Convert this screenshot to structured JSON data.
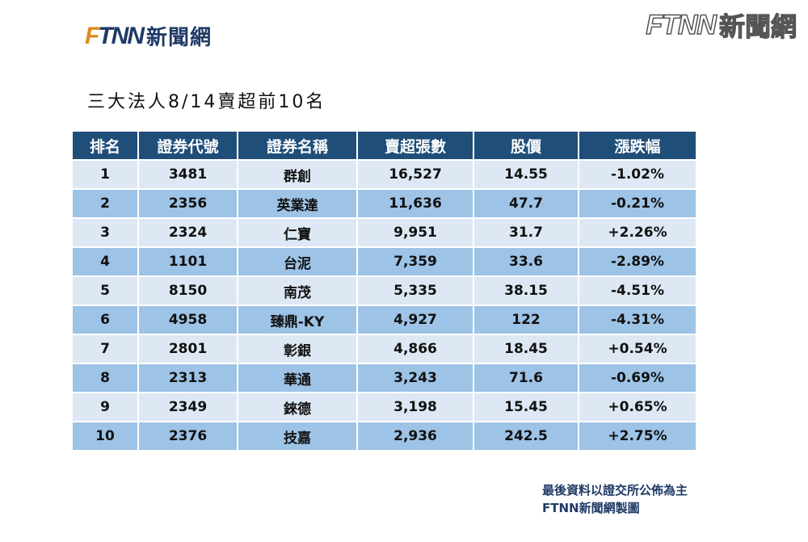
{
  "logo": {
    "letters": "FTNN",
    "text": "新聞網"
  },
  "watermark": {
    "letters": "FTNN",
    "text": "新聞網"
  },
  "title": "三大法人8/14賣超前10名",
  "table": {
    "headers": [
      "排名",
      "證券代號",
      "證券名稱",
      "賣超張數",
      "股價",
      "漲跌幅"
    ],
    "rows": [
      [
        "1",
        "3481",
        "群創",
        "16,527",
        "14.55",
        "-1.02%"
      ],
      [
        "2",
        "2356",
        "英業達",
        "11,636",
        "47.7",
        "-0.21%"
      ],
      [
        "3",
        "2324",
        "仁寶",
        "9,951",
        "31.7",
        "+2.26%"
      ],
      [
        "4",
        "1101",
        "台泥",
        "7,359",
        "33.6",
        "-2.89%"
      ],
      [
        "5",
        "8150",
        "南茂",
        "5,335",
        "38.15",
        "-4.51%"
      ],
      [
        "6",
        "4958",
        "臻鼎-KY",
        "4,927",
        "122",
        "-4.31%"
      ],
      [
        "7",
        "2801",
        "彰銀",
        "4,866",
        "18.45",
        "+0.54%"
      ],
      [
        "8",
        "2313",
        "華通",
        "3,243",
        "71.6",
        "-0.69%"
      ],
      [
        "9",
        "2349",
        "錸德",
        "3,198",
        "15.45",
        "+0.65%"
      ],
      [
        "10",
        "2376",
        "技嘉",
        "2,936",
        "242.5",
        "+2.75%"
      ]
    ]
  },
  "footer": {
    "line1": "最後資料以證交所公佈為主",
    "line2": "FTNN新聞網製圖"
  },
  "colors": {
    "header_bg": "#1f4e79",
    "row_light": "#dde8f4",
    "row_dark": "#9dc3e6",
    "brand_navy": "#1f3a66",
    "brand_orange": "#e08a1e"
  }
}
